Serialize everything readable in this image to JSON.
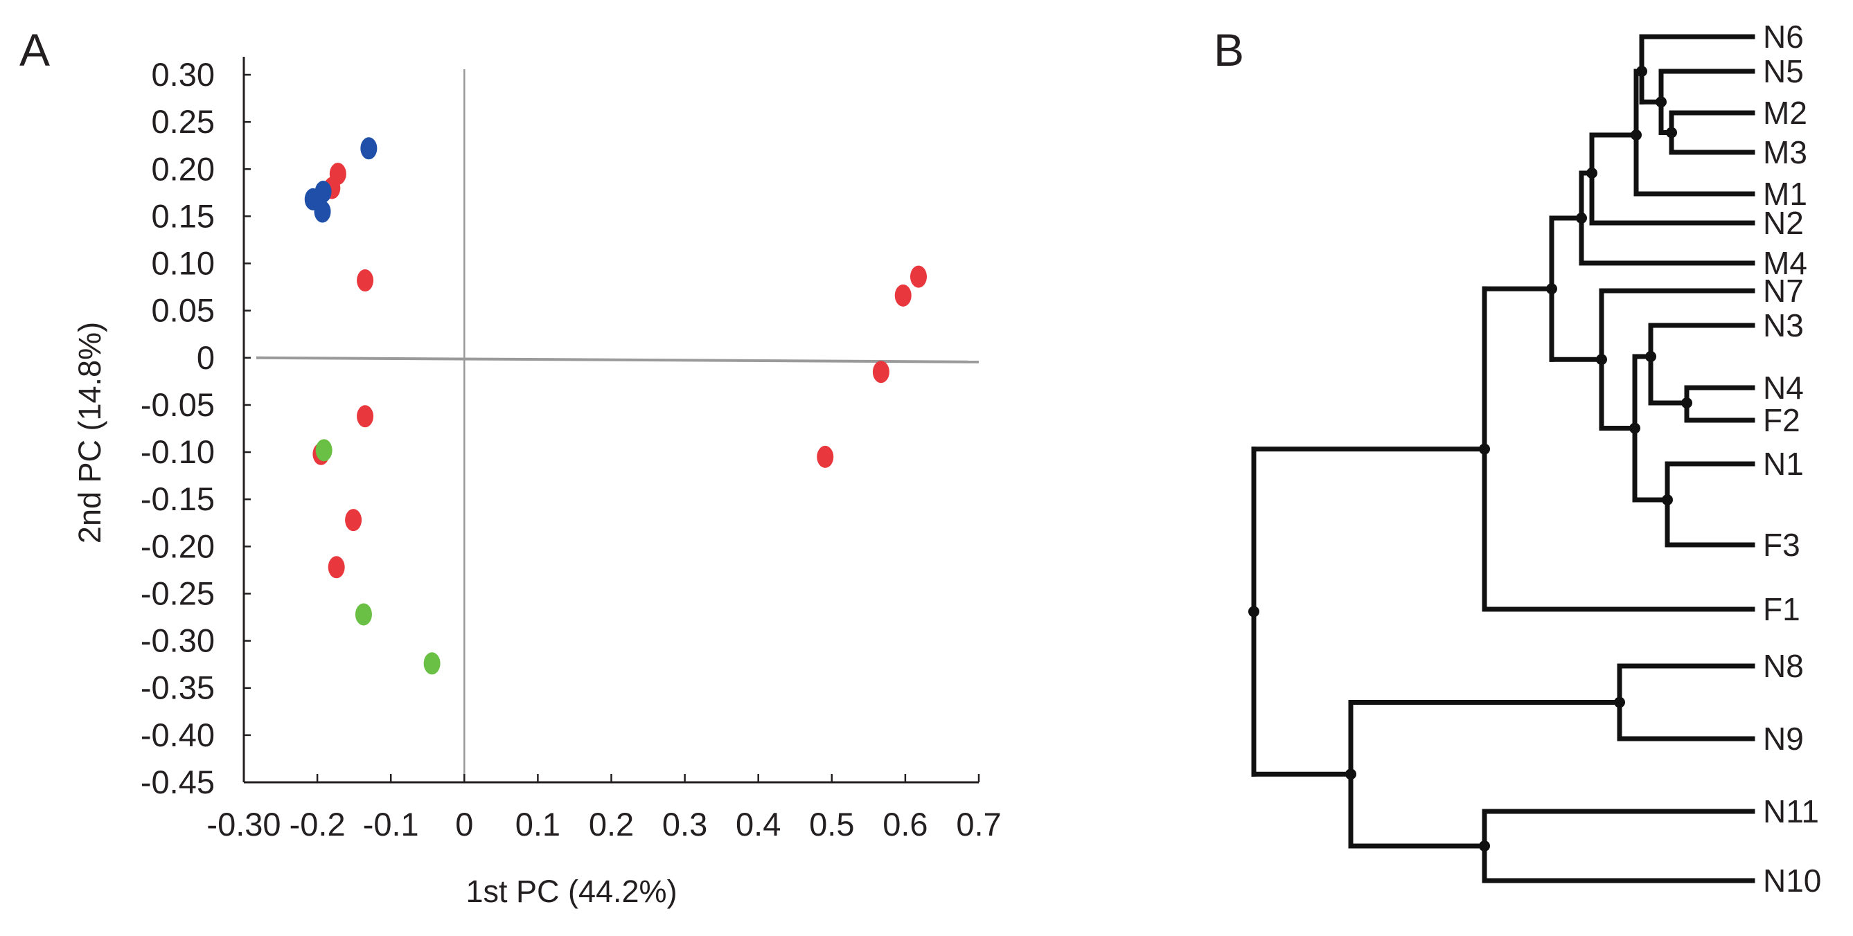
{
  "chart_data": [
    {
      "panel": "A",
      "type": "scatter",
      "title": "",
      "xlabel": "1st PC (44.2%)",
      "ylabel": "2nd PC (14.8%)",
      "xlim": [
        -0.3,
        0.7
      ],
      "ylim": [
        -0.45,
        0.32
      ],
      "x_ticks": [
        "-0.30",
        "-0.2",
        "-0.1",
        "0",
        "0.1",
        "0.2",
        "0.3",
        "0.4",
        "0.5",
        "0.6",
        "0.7"
      ],
      "x_tick_values": [
        -0.3,
        -0.2,
        -0.1,
        0,
        0.1,
        0.2,
        0.3,
        0.4,
        0.5,
        0.6,
        0.7
      ],
      "y_ticks": [
        "0.30",
        "0.25",
        "0.20",
        "0.15",
        "0.10",
        "0.05",
        "0",
        "-0.05",
        "-0.10",
        "-0.15",
        "-0.20",
        "-0.25",
        "-0.30",
        "-0.35",
        "-0.40",
        "-0.45"
      ],
      "y_tick_values": [
        0.3,
        0.25,
        0.2,
        0.15,
        0.1,
        0.05,
        0,
        -0.05,
        -0.1,
        -0.15,
        -0.2,
        -0.25,
        -0.3,
        -0.35,
        -0.4,
        -0.45
      ],
      "grid": false,
      "series": [
        {
          "name": "red",
          "color": "#e8383d",
          "points": [
            {
              "x": -0.172,
              "y": 0.195
            },
            {
              "x": -0.18,
              "y": 0.18
            },
            {
              "x": -0.135,
              "y": 0.082
            },
            {
              "x": -0.135,
              "y": -0.062
            },
            {
              "x": -0.195,
              "y": -0.102
            },
            {
              "x": -0.151,
              "y": -0.172
            },
            {
              "x": -0.174,
              "y": -0.222
            },
            {
              "x": 0.618,
              "y": 0.086
            },
            {
              "x": 0.597,
              "y": 0.066
            },
            {
              "x": 0.567,
              "y": -0.015
            },
            {
              "x": 0.491,
              "y": -0.105
            }
          ]
        },
        {
          "name": "blue",
          "color": "#1f4fa8",
          "points": [
            {
              "x": -0.13,
              "y": 0.222
            },
            {
              "x": -0.192,
              "y": 0.176
            },
            {
              "x": -0.206,
              "y": 0.168
            },
            {
              "x": -0.193,
              "y": 0.155
            }
          ]
        },
        {
          "name": "green",
          "color": "#6abf45",
          "points": [
            {
              "x": -0.191,
              "y": -0.098
            },
            {
              "x": -0.137,
              "y": -0.272
            },
            {
              "x": -0.044,
              "y": -0.324
            }
          ]
        }
      ]
    },
    {
      "panel": "B",
      "type": "dendrogram",
      "leaves": [
        "N6",
        "N5",
        "M2",
        "M3",
        "M1",
        "N2",
        "M4",
        "N7",
        "N3",
        "N4",
        "F2",
        "N1",
        "F3",
        "F1",
        "N8",
        "N9",
        "N11",
        "N10"
      ],
      "tree": {
        "children": [
          {
            "children": [
              {
                "children": [
                  {
                    "children": [
                      {
                        "children": [
                          {
                            "children": [
                              {
                                "leaf": "N6"
                              },
                              {
                                "children": [
                                  {
                                    "leaf": "N5"
                                  },
                                  {
                                    "children": [
                                      {
                                        "leaf": "M2"
                                      },
                                      {
                                        "leaf": "M3"
                                      }
                                    ]
                                  }
                                ]
                              }
                            ]
                          },
                          {
                            "leaf": "M1"
                          }
                        ]
                      },
                      {
                        "leaf": "N2"
                      }
                    ]
                  },
                  {
                    "leaf": "M4"
                  }
                ]
              },
              {
                "children": [
                  {
                    "leaf": "N7"
                  },
                  {
                    "children": [
                      {
                        "children": [
                          {
                            "leaf": "N3"
                          },
                          {
                            "children": [
                              {
                                "leaf": "N4"
                              },
                              {
                                "leaf": "F2"
                              }
                            ]
                          }
                        ]
                      },
                      {
                        "children": [
                          {
                            "leaf": "N1"
                          },
                          {
                            "leaf": "F3"
                          }
                        ]
                      }
                    ]
                  }
                ]
              }
            ]
          },
          {
            "leaf": "F1"
          }
        ]
      },
      "tree_part2": {
        "children": [
          {
            "children": [
              {
                "leaf": "N8"
              },
              {
                "leaf": "N9"
              }
            ]
          },
          {
            "children": [
              {
                "leaf": "N11"
              },
              {
                "leaf": "N10"
              }
            ]
          }
        ]
      }
    }
  ]
}
